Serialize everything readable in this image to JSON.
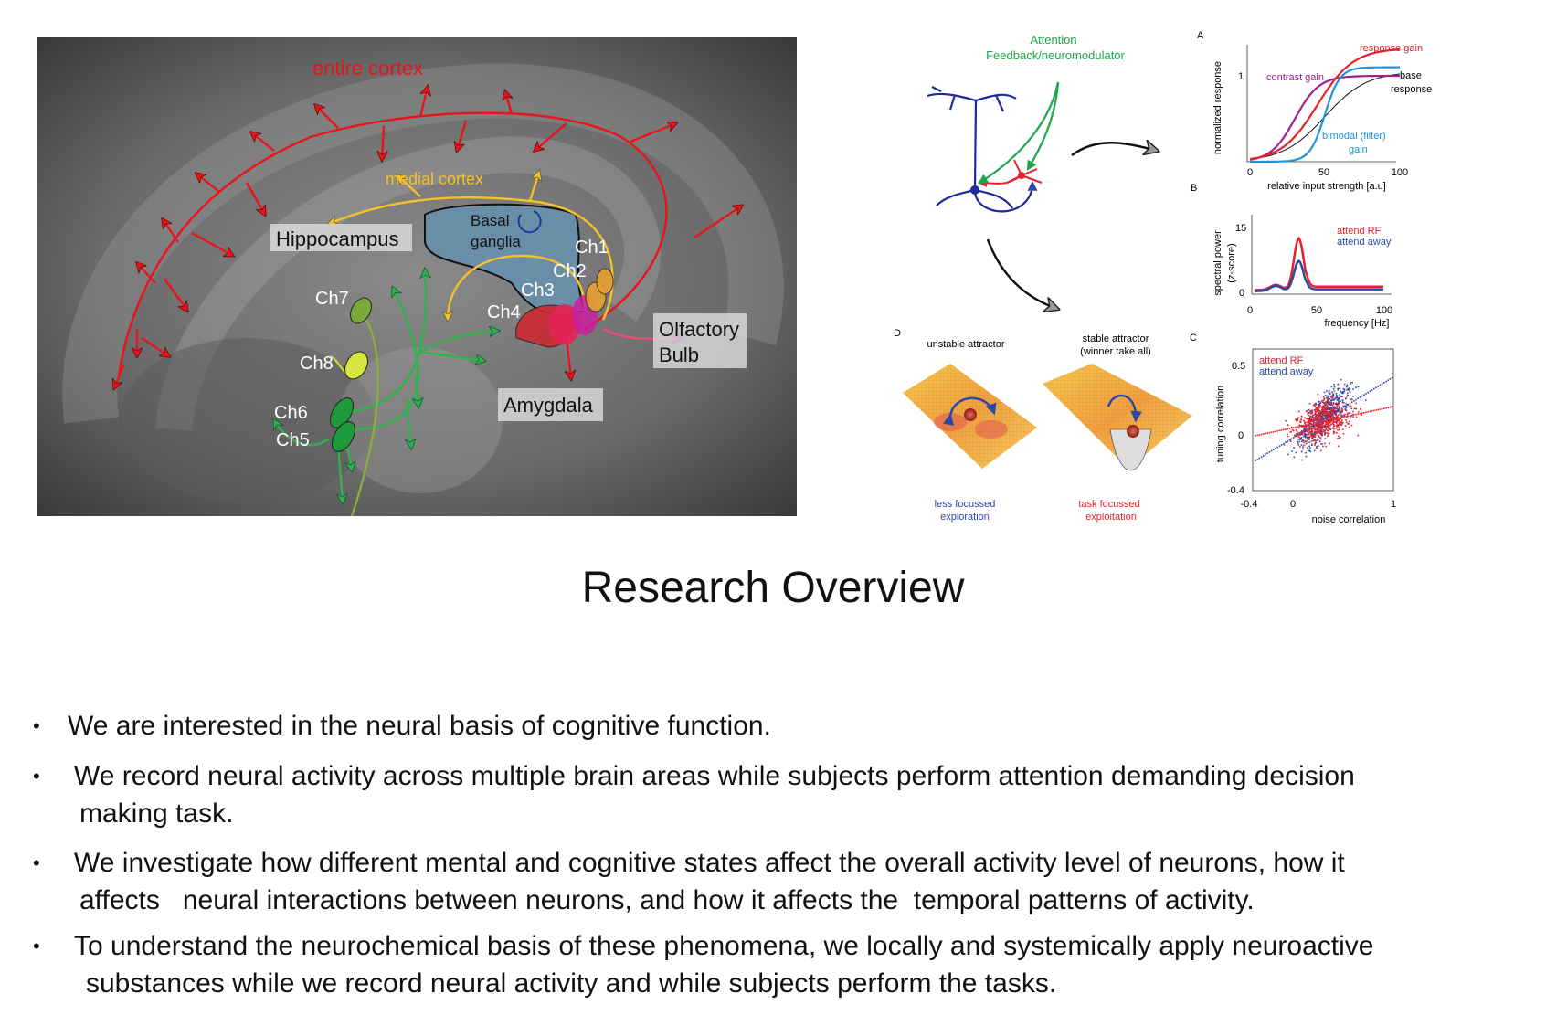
{
  "brain_figure": {
    "labels": {
      "entire_cortex": "entire cortex",
      "medial_cortex": "medial cortex",
      "hippocampus": "Hippocampus",
      "basal_ganglia_1": "Basal",
      "basal_ganglia_2": "ganglia",
      "ch1": "Ch1",
      "ch2": "Ch2",
      "ch3": "Ch3",
      "ch4": "Ch4",
      "ch5": "Ch5",
      "ch6": "Ch6",
      "ch7": "Ch7",
      "ch8": "Ch8",
      "olfactory_1": "Olfactory",
      "olfactory_2": "Bulb",
      "amygdala": "Amygdala"
    },
    "colors": {
      "cortex": "#e8141c",
      "medial": "#f5c02a",
      "cholinergic": "#2fb34a",
      "basal_ganglia": "#6a8ea8"
    }
  },
  "model_figure": {
    "neuron_caption_1": "Attention",
    "neuron_caption_2": "Feedback/neuromodulator",
    "panel_a": {
      "letter": "A",
      "ylabel": "normalized response",
      "xlabel": "relative input strength [a.u]",
      "xticks": [
        "0",
        "50",
        "100"
      ],
      "ytick": "1",
      "labels": {
        "response_gain": "response gain",
        "contrast_gain": "contrast gain",
        "base_1": "base",
        "base_2": "response",
        "bimodal_1": "bimodal (filter)",
        "bimodal_2": "gain"
      }
    },
    "panel_b": {
      "letter": "B",
      "ylabel_1": "spectral power",
      "ylabel_2": "(z-score)",
      "xlabel": "frequency [Hz]",
      "xticks": [
        "0",
        "50",
        "100"
      ],
      "yticks": [
        "15",
        "0"
      ],
      "legend": [
        "attend RF",
        "attend away"
      ]
    },
    "panel_c": {
      "letter": "C",
      "ylabel": "tuning correlation",
      "xlabel": "noise correlation",
      "xticks": [
        "-0.4",
        "0",
        "1"
      ],
      "yticks": [
        "0.5",
        "0",
        "-0.4"
      ],
      "legend": [
        "attend RF",
        "attend away"
      ]
    },
    "panel_d": {
      "letter": "D",
      "left_title": "unstable attractor",
      "right_title_1": "stable attractor",
      "right_title_2": "(winner take all)",
      "left_caption_1": "less focussed",
      "left_caption_2": "exploration",
      "right_caption_1": "task focussed",
      "right_caption_2": "exploitation"
    },
    "colors": {
      "red": "#e8202a",
      "blue": "#2a48a8",
      "green": "#1aa64a",
      "magenta": "#b0208e",
      "cyan": "#1e96d8"
    }
  },
  "title": "Research Overview",
  "bullets": [
    {
      "lines": [
        "We are interested in the neural basis of cognitive function."
      ]
    },
    {
      "lines": [
        "We record neural activity across multiple brain areas while subjects perform attention demanding decision",
        "making task."
      ]
    },
    {
      "lines": [
        "We investigate how different mental and cognitive states affect the overall activity level of neurons, how it",
        "affects   neural interactions between neurons, and how it affects the  temporal patterns of activity."
      ]
    },
    {
      "lines": [
        "To understand the neurochemical basis of these phenomena, we locally and systemically apply neuroactive",
        "substances while we record neural activity and while subjects perform the tasks."
      ]
    }
  ],
  "bullet_symbol": "•"
}
